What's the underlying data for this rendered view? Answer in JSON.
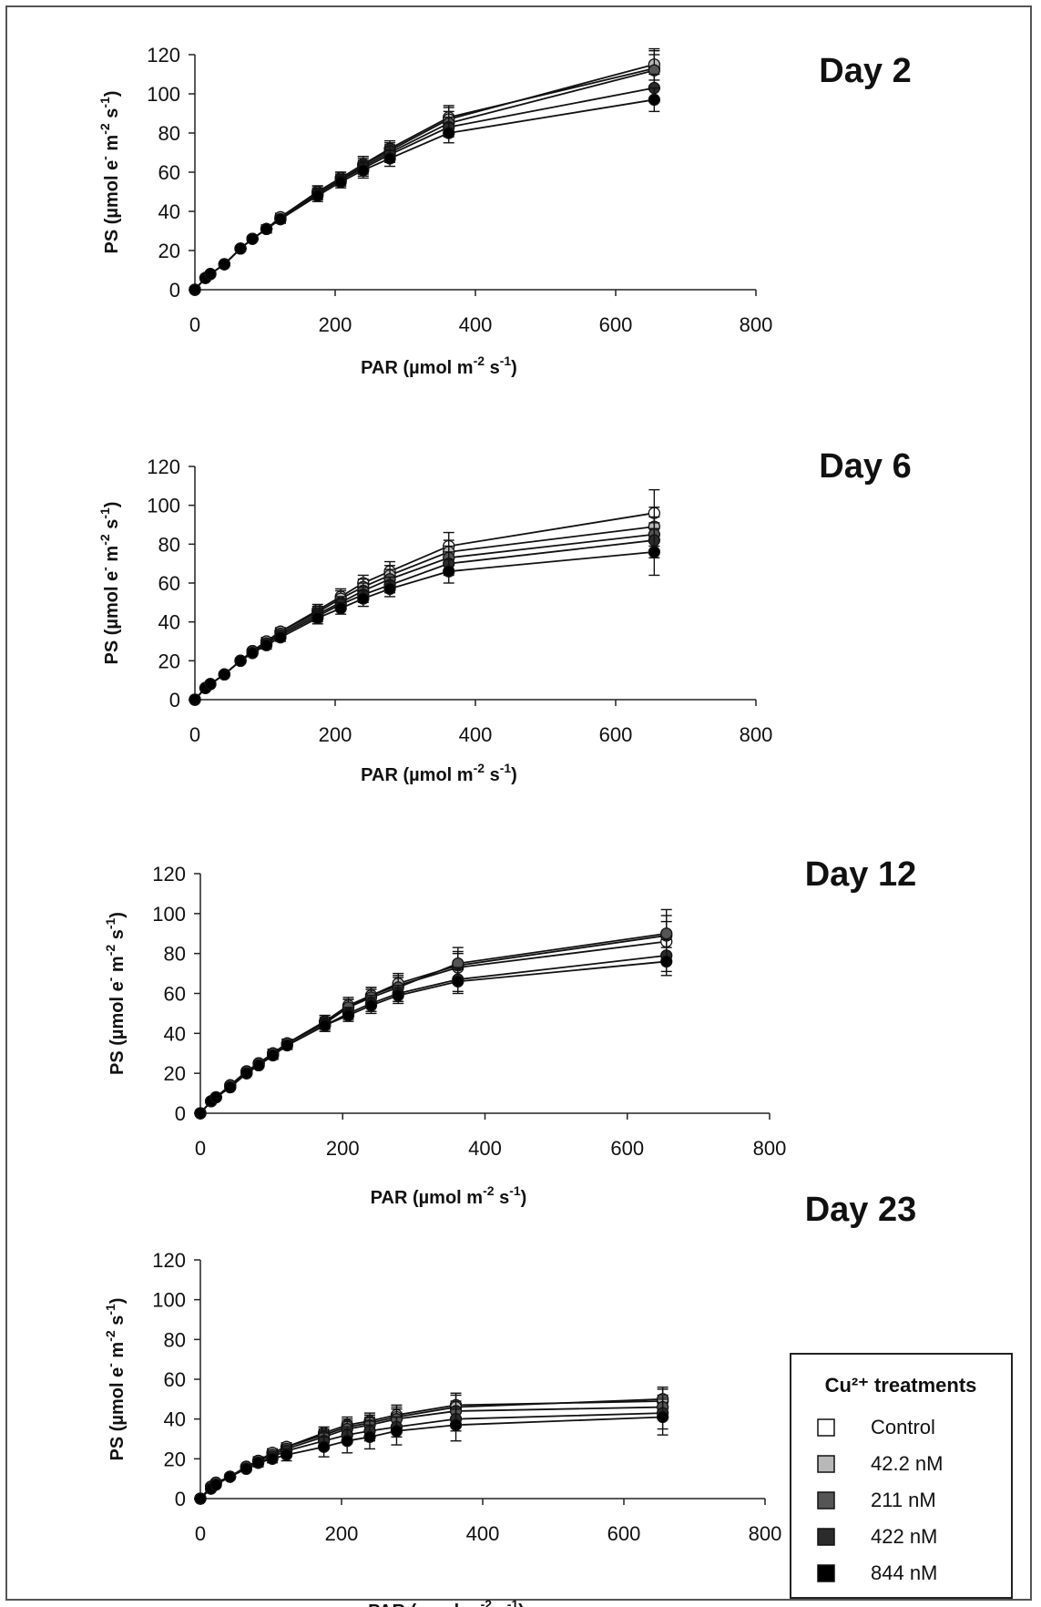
{
  "legend": {
    "title": "Cu²⁺ treatments",
    "items": [
      {
        "label": "Control",
        "color": "#ffffff"
      },
      {
        "label": "42.2 nM",
        "color": "#b8b8b8"
      },
      {
        "label": "211 nM",
        "color": "#555555"
      },
      {
        "label": "422 nM",
        "color": "#2b2b2b"
      },
      {
        "label": "844 nM",
        "color": "#000000"
      }
    ]
  },
  "axis_titles": {
    "y_main": "PS (µmol e",
    "y_sup1": "-",
    "y_mid": " m",
    "y_sup2": "-2",
    "y_s": " s",
    "y_sup3": "-1",
    "y_end": ")",
    "x_main": "PAR (µmol m",
    "x_sup1": "-2",
    "x_s": " s",
    "x_sup2": "-1",
    "x_end": ")"
  },
  "chart_data": [
    {
      "type": "line",
      "title": "Day 2",
      "xlim": [
        0,
        800
      ],
      "ylim": [
        0,
        120
      ],
      "xticks": [
        0,
        200,
        400,
        600,
        800
      ],
      "yticks": [
        0,
        20,
        40,
        60,
        80,
        100,
        120
      ],
      "x": [
        0,
        15,
        22,
        42,
        65,
        82,
        102,
        122,
        175,
        208,
        240,
        278,
        362,
        655
      ],
      "series": [
        {
          "name": "Control",
          "values": [
            0,
            6,
            8,
            13,
            21,
            26,
            31,
            37,
            50,
            57,
            64,
            72,
            88,
            113
          ],
          "err": [
            0,
            1,
            1,
            1,
            1,
            1,
            2,
            2,
            3,
            3,
            4,
            4,
            6,
            9
          ]
        },
        {
          "name": "42.2 nM",
          "values": [
            0,
            6,
            8,
            13,
            21,
            26,
            31,
            37,
            50,
            57,
            64,
            71,
            87,
            115
          ],
          "err": [
            0,
            1,
            1,
            1,
            1,
            1,
            2,
            2,
            3,
            3,
            4,
            4,
            6,
            8
          ]
        },
        {
          "name": "211 nM",
          "values": [
            0,
            6,
            8,
            13,
            21,
            26,
            31,
            36,
            49,
            56,
            63,
            70,
            85,
            112
          ],
          "err": [
            0,
            1,
            1,
            1,
            1,
            1,
            2,
            2,
            3,
            3,
            4,
            4,
            6,
            8
          ]
        },
        {
          "name": "422 nM",
          "values": [
            0,
            6,
            8,
            13,
            21,
            26,
            31,
            36,
            49,
            56,
            62,
            69,
            83,
            103
          ],
          "err": [
            0,
            1,
            1,
            1,
            1,
            1,
            2,
            2,
            3,
            3,
            4,
            4,
            5,
            7
          ]
        },
        {
          "name": "844 nM",
          "values": [
            0,
            6,
            8,
            13,
            21,
            26,
            31,
            36,
            48,
            55,
            61,
            67,
            80,
            97
          ],
          "err": [
            0,
            1,
            1,
            1,
            1,
            1,
            2,
            2,
            3,
            3,
            4,
            4,
            5,
            6
          ]
        }
      ]
    },
    {
      "type": "line",
      "title": "Day 6",
      "xlim": [
        0,
        800
      ],
      "ylim": [
        0,
        120
      ],
      "xticks": [
        0,
        200,
        400,
        600,
        800
      ],
      "yticks": [
        0,
        20,
        40,
        60,
        80,
        100,
        120
      ],
      "x": [
        0,
        15,
        22,
        42,
        65,
        82,
        102,
        122,
        175,
        208,
        240,
        278,
        362,
        655
      ],
      "series": [
        {
          "name": "Control",
          "values": [
            0,
            6,
            8,
            13,
            20,
            25,
            30,
            35,
            46,
            53,
            60,
            66,
            79,
            96
          ],
          "err": [
            0,
            1,
            1,
            1,
            1,
            1,
            2,
            2,
            3,
            4,
            4,
            5,
            7,
            12
          ]
        },
        {
          "name": "42.2 nM",
          "values": [
            0,
            6,
            8,
            13,
            20,
            25,
            30,
            35,
            45,
            52,
            58,
            64,
            76,
            89
          ],
          "err": [
            0,
            1,
            1,
            1,
            1,
            1,
            2,
            2,
            3,
            4,
            4,
            5,
            6,
            10
          ]
        },
        {
          "name": "211 nM",
          "values": [
            0,
            6,
            8,
            13,
            20,
            25,
            29,
            34,
            44,
            50,
            56,
            62,
            73,
            85
          ],
          "err": [
            0,
            1,
            1,
            1,
            1,
            1,
            2,
            2,
            3,
            3,
            4,
            5,
            6,
            9
          ]
        },
        {
          "name": "422 nM",
          "values": [
            0,
            6,
            8,
            13,
            20,
            24,
            29,
            33,
            43,
            49,
            54,
            59,
            70,
            82
          ],
          "err": [
            0,
            1,
            1,
            1,
            1,
            1,
            2,
            2,
            3,
            3,
            4,
            4,
            6,
            9
          ]
        },
        {
          "name": "844 nM",
          "values": [
            0,
            6,
            8,
            13,
            20,
            24,
            28,
            32,
            42,
            47,
            52,
            57,
            66,
            76
          ],
          "err": [
            0,
            1,
            1,
            1,
            1,
            1,
            2,
            2,
            3,
            3,
            4,
            4,
            6,
            12
          ]
        }
      ]
    },
    {
      "type": "line",
      "title": "Day 12",
      "xlim": [
        0,
        800
      ],
      "ylim": [
        0,
        120
      ],
      "xticks": [
        0,
        200,
        400,
        600,
        800
      ],
      "yticks": [
        0,
        20,
        40,
        60,
        80,
        100,
        120
      ],
      "x": [
        0,
        15,
        22,
        42,
        65,
        82,
        102,
        122,
        175,
        208,
        240,
        278,
        362,
        655
      ],
      "series": [
        {
          "name": "Control",
          "values": [
            0,
            6,
            8,
            14,
            21,
            25,
            30,
            35,
            46,
            53,
            59,
            64,
            73,
            86
          ],
          "err": [
            0,
            1,
            1,
            1,
            1,
            1,
            2,
            2,
            3,
            4,
            4,
            5,
            7,
            10
          ]
        },
        {
          "name": "42.2 nM",
          "values": [
            0,
            6,
            8,
            14,
            21,
            25,
            30,
            35,
            46,
            54,
            59,
            65,
            74,
            89
          ],
          "err": [
            0,
            1,
            1,
            1,
            1,
            1,
            2,
            2,
            3,
            4,
            4,
            5,
            7,
            10
          ]
        },
        {
          "name": "211 nM",
          "values": [
            0,
            6,
            8,
            14,
            21,
            25,
            30,
            35,
            45,
            53,
            58,
            63,
            75,
            90
          ],
          "err": [
            0,
            1,
            1,
            1,
            1,
            1,
            2,
            2,
            3,
            4,
            4,
            5,
            8,
            12
          ]
        },
        {
          "name": "422 nM",
          "values": [
            0,
            6,
            8,
            13,
            20,
            24,
            29,
            34,
            44,
            50,
            55,
            60,
            67,
            79
          ],
          "err": [
            0,
            1,
            1,
            1,
            1,
            1,
            2,
            2,
            3,
            3,
            4,
            4,
            6,
            8
          ]
        },
        {
          "name": "844 nM",
          "values": [
            0,
            6,
            8,
            13,
            20,
            24,
            29,
            34,
            44,
            49,
            54,
            59,
            66,
            76
          ],
          "err": [
            0,
            1,
            1,
            1,
            1,
            1,
            2,
            2,
            3,
            3,
            4,
            4,
            6,
            7
          ]
        }
      ]
    },
    {
      "type": "line",
      "title": "Day 23",
      "xlim": [
        0,
        800
      ],
      "ylim": [
        0,
        120
      ],
      "xticks": [
        0,
        200,
        400,
        600,
        800
      ],
      "yticks": [
        0,
        20,
        40,
        60,
        80,
        100,
        120
      ],
      "x": [
        0,
        15,
        22,
        42,
        65,
        82,
        102,
        122,
        175,
        208,
        240,
        278,
        362,
        655
      ],
      "series": [
        {
          "name": "Control",
          "values": [
            0,
            6,
            8,
            11,
            16,
            19,
            23,
            26,
            33,
            37,
            39,
            42,
            47,
            49
          ],
          "err": [
            0,
            1,
            1,
            1,
            1,
            2,
            2,
            2,
            3,
            4,
            4,
            5,
            6,
            6
          ]
        },
        {
          "name": "42.2 nM",
          "values": [
            0,
            6,
            8,
            11,
            16,
            19,
            23,
            26,
            32,
            36,
            38,
            41,
            46,
            50
          ],
          "err": [
            0,
            1,
            1,
            1,
            1,
            2,
            2,
            2,
            3,
            4,
            4,
            5,
            6,
            6
          ]
        },
        {
          "name": "211 nM",
          "values": [
            0,
            6,
            8,
            11,
            16,
            19,
            22,
            25,
            31,
            35,
            37,
            40,
            44,
            46
          ],
          "err": [
            0,
            1,
            1,
            1,
            1,
            2,
            2,
            2,
            3,
            4,
            4,
            5,
            5,
            6
          ]
        },
        {
          "name": "422 nM",
          "values": [
            0,
            5,
            7,
            11,
            15,
            18,
            21,
            24,
            29,
            32,
            34,
            36,
            40,
            43
          ],
          "err": [
            0,
            1,
            1,
            1,
            1,
            2,
            2,
            2,
            4,
            4,
            5,
            5,
            6,
            8
          ]
        },
        {
          "name": "844 nM",
          "values": [
            0,
            5,
            7,
            11,
            15,
            18,
            20,
            22,
            26,
            29,
            31,
            34,
            37,
            41
          ],
          "err": [
            0,
            1,
            1,
            1,
            1,
            2,
            2,
            3,
            5,
            6,
            6,
            7,
            8,
            9
          ]
        }
      ]
    }
  ]
}
